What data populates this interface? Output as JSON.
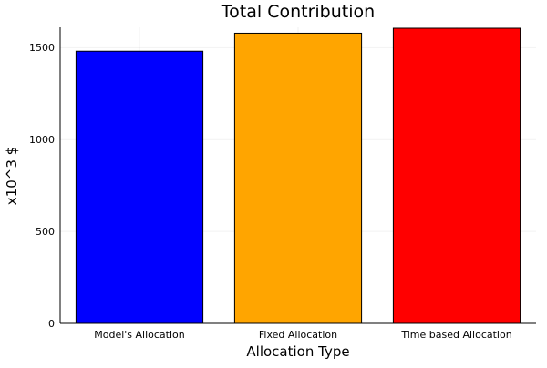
{
  "chart_data": {
    "type": "bar",
    "title": "Total Contribution",
    "xlabel": "Allocation Type",
    "ylabel": "x10^3 $",
    "categories": [
      "Model's Allocation",
      "Fixed Allocation",
      "Time based Allocation"
    ],
    "values": [
      1480,
      1578,
      1605
    ],
    "colors": [
      "#0000ff",
      "#ffa500",
      "#ff0000"
    ],
    "ylim": [
      0,
      1610
    ],
    "yticks": [
      0,
      500,
      1000,
      1500
    ],
    "grid": true,
    "legend": "none"
  }
}
